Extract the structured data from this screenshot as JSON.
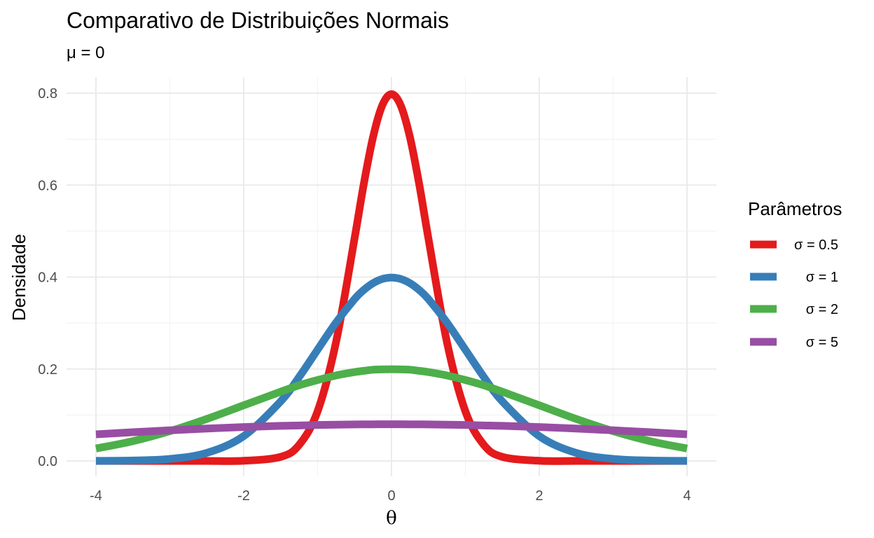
{
  "chart_data": {
    "type": "line",
    "title": "Comparativo de Distribuições Normais",
    "subtitle": "μ = 0",
    "xlabel": "θ",
    "ylabel": "Densidade",
    "xlim": [
      -4,
      4
    ],
    "ylim": [
      0,
      0.8
    ],
    "x_ticks": [
      -4,
      -2,
      0,
      2,
      4
    ],
    "x_tick_labels": [
      "-4",
      "-2",
      "0",
      "2",
      "4"
    ],
    "y_ticks": [
      0,
      0.2,
      0.4,
      0.6,
      0.8
    ],
    "y_tick_labels": [
      "0.0",
      "0.2",
      "0.4",
      "0.6",
      "0.8"
    ],
    "grid": true,
    "legend": {
      "title": "Parâmetros",
      "position": "right"
    },
    "x": [
      -4,
      -3.5,
      -3,
      -2.5,
      -2,
      -1.5,
      -1.25,
      -1,
      -0.75,
      -0.5,
      -0.375,
      -0.25,
      -0.125,
      0,
      0.125,
      0.25,
      0.375,
      0.5,
      0.75,
      1,
      1.25,
      1.5,
      2,
      2.5,
      3,
      3.5,
      4
    ],
    "series": [
      {
        "name": "σ = 0.5",
        "color": "#e41a1c",
        "values": [
          0.0,
          0.0,
          0.0,
          0.0,
          0.0003,
          0.0089,
          0.035,
          0.108,
          0.259,
          0.4839,
          0.6023,
          0.7041,
          0.7733,
          0.7979,
          0.7733,
          0.7041,
          0.6023,
          0.4839,
          0.259,
          0.108,
          0.035,
          0.0089,
          0.0003,
          0.0,
          0.0,
          0.0,
          0.0
        ]
      },
      {
        "name": "σ = 1",
        "color": "#377eb8",
        "values": [
          0.0001,
          0.0009,
          0.0044,
          0.0175,
          0.054,
          0.1295,
          0.1826,
          0.242,
          0.3011,
          0.3521,
          0.3719,
          0.3867,
          0.3958,
          0.3989,
          0.3958,
          0.3867,
          0.3719,
          0.3521,
          0.3011,
          0.242,
          0.1826,
          0.1295,
          0.054,
          0.0175,
          0.0044,
          0.0009,
          0.0001
        ]
      },
      {
        "name": "σ = 2",
        "color": "#4daf4a",
        "values": [
          0.027,
          0.0431,
          0.0648,
          0.0913,
          0.121,
          0.1506,
          0.1646,
          0.176,
          0.186,
          0.1933,
          0.196,
          0.1984,
          0.1991,
          0.1995,
          0.1991,
          0.1984,
          0.196,
          0.1933,
          0.186,
          0.176,
          0.1646,
          0.1506,
          0.121,
          0.0913,
          0.0648,
          0.0431,
          0.027
        ]
      },
      {
        "name": "σ = 5",
        "color": "#984ea3",
        "values": [
          0.0579,
          0.0625,
          0.0666,
          0.0704,
          0.0737,
          0.0763,
          0.0772,
          0.0782,
          0.0789,
          0.0794,
          0.0796,
          0.0797,
          0.0798,
          0.0798,
          0.0798,
          0.0797,
          0.0796,
          0.0794,
          0.0789,
          0.0782,
          0.0772,
          0.0763,
          0.0737,
          0.0704,
          0.0666,
          0.0625,
          0.0579
        ]
      }
    ]
  }
}
